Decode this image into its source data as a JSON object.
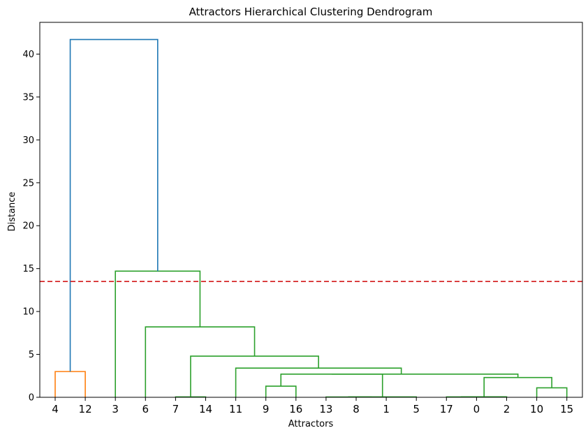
{
  "chart_data": {
    "type": "dendrogram",
    "title": "Attractors Hierarchical Clustering Dendrogram",
    "xlabel": "Attractors",
    "ylabel": "Distance",
    "ylim": [
      0,
      43.7
    ],
    "yticks": [
      0,
      5,
      10,
      15,
      20,
      25,
      30,
      35,
      40
    ],
    "grid": false,
    "leaves": [
      "4",
      "12",
      "3",
      "6",
      "7",
      "14",
      "11",
      "9",
      "16",
      "13",
      "8",
      "1",
      "5",
      "17",
      "0",
      "2",
      "10",
      "15"
    ],
    "threshold": {
      "value": 13.5,
      "color": "#d62728",
      "style": "dashed"
    },
    "colors": {
      "orange": "#ff7f0e",
      "green": "#2ca02c",
      "blue": "#1f77b4"
    },
    "links": [
      {
        "left": 0,
        "right": 1,
        "height": 3.0,
        "left_h": 0,
        "right_h": 0,
        "color": "orange"
      },
      {
        "left": 4,
        "right": 5,
        "height": 0.05,
        "left_h": 0,
        "right_h": 0,
        "color": "green"
      },
      {
        "left": 10,
        "right": 11,
        "height": 0.03,
        "left_h": 0,
        "right_h": 0,
        "color": "green"
      },
      {
        "left": 9,
        "right": 10.5,
        "height": 0.04,
        "left_h": 0,
        "right_h": 0.03,
        "color": "green"
      },
      {
        "left": 12,
        "right": 9.75,
        "height": 0.05,
        "left_h": 0,
        "right_h": 0.04,
        "color": "green"
      },
      {
        "left": 13,
        "right": 14,
        "height": 0.05,
        "left_h": 0,
        "right_h": 0,
        "color": "green"
      },
      {
        "left": 16,
        "right": 17,
        "height": 1.1,
        "left_h": 0,
        "right_h": 0,
        "color": "green"
      },
      {
        "left": 7,
        "right": 8,
        "height": 1.3,
        "left_h": 0,
        "right_h": 0,
        "color": "green"
      },
      {
        "left": 13.5,
        "right": 15,
        "height": 0.06,
        "left_h": 0.05,
        "right_h": 0,
        "color": "green"
      },
      {
        "left": 14.25,
        "right": 16.5,
        "height": 2.3,
        "left_h": 0.06,
        "right_h": 1.1,
        "color": "green"
      },
      {
        "left": 7.5,
        "right": 10.875,
        "height": 2.7,
        "left_h": 1.3,
        "right_h": 0.05,
        "color": "green"
      },
      {
        "left": 9.1875,
        "right": 15.375,
        "height": 2.7,
        "left_h": 2.7,
        "right_h": 2.3,
        "color": "green"
      },
      {
        "left": 6,
        "right": 11.5,
        "height": 3.4,
        "left_h": 0,
        "right_h": 2.7,
        "color": "green"
      },
      {
        "left": 4.5,
        "right": 8.75,
        "height": 4.8,
        "left_h": 0.05,
        "right_h": 3.4,
        "color": "green"
      },
      {
        "left": 3,
        "right": 6.625,
        "height": 8.2,
        "left_h": 0,
        "right_h": 4.8,
        "color": "green"
      },
      {
        "left": 2,
        "right": 4.8125,
        "height": 14.7,
        "left_h": 0,
        "right_h": 8.2,
        "color": "green"
      },
      {
        "left": 0.5,
        "right": 3.40625,
        "height": 41.7,
        "left_h": 3.0,
        "right_h": 14.7,
        "color": "blue"
      }
    ]
  }
}
